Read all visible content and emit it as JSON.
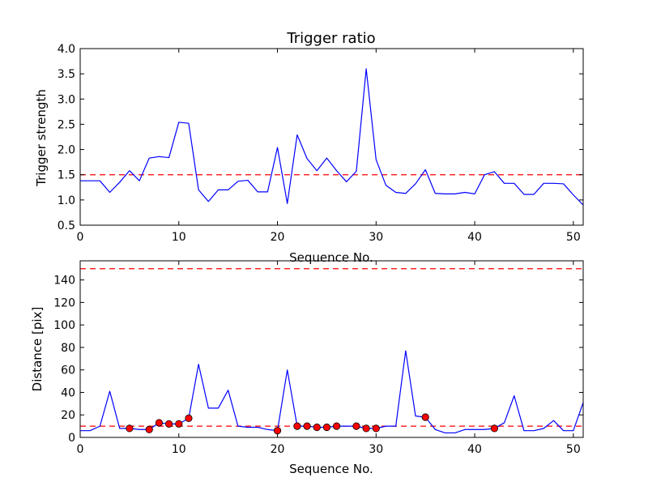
{
  "chart_data": [
    {
      "type": "line",
      "title": "Trigger ratio",
      "xlabel": "Sequence No.",
      "ylabel": "Trigger strength",
      "xlim": [
        0,
        51
      ],
      "ylim": [
        0.5,
        4.0
      ],
      "xticks": [
        0,
        10,
        20,
        30,
        40,
        50
      ],
      "xtick_labels": [
        "0",
        "10",
        "20",
        "30",
        "40",
        "50"
      ],
      "yticks": [
        0.5,
        1.0,
        1.5,
        2.0,
        2.5,
        3.0,
        3.5,
        4.0
      ],
      "ytick_labels": [
        "0.5",
        "1.0",
        "1.5",
        "2.0",
        "2.5",
        "3.0",
        "3.5",
        "4.0"
      ],
      "grid": false,
      "colors": {
        "line": "#0000ff",
        "threshold": "#ff0000"
      },
      "series": [
        {
          "x": [
            0,
            1,
            2,
            3,
            4,
            5,
            6,
            7,
            8,
            9,
            10,
            11,
            12,
            13,
            14,
            15,
            16,
            17,
            18,
            19,
            20,
            21,
            22,
            23,
            24,
            25,
            26,
            27,
            28,
            29,
            30,
            31,
            32,
            33,
            34,
            35,
            36,
            37,
            38,
            39,
            40,
            41,
            42,
            43,
            44,
            45,
            46,
            47,
            48,
            49,
            50,
            51
          ],
          "y": [
            1.38,
            1.38,
            1.38,
            1.15,
            1.35,
            1.58,
            1.38,
            1.83,
            1.86,
            1.84,
            2.54,
            2.52,
            1.2,
            0.97,
            1.2,
            1.2,
            1.37,
            1.39,
            1.16,
            1.16,
            2.04,
            0.93,
            2.29,
            1.82,
            1.58,
            1.83,
            1.58,
            1.36,
            1.57,
            3.6,
            1.8,
            1.29,
            1.15,
            1.13,
            1.32,
            1.6,
            1.13,
            1.12,
            1.12,
            1.15,
            1.12,
            1.5,
            1.56,
            1.33,
            1.33,
            1.11,
            1.11,
            1.33,
            1.33,
            1.32,
            1.1,
            0.9
          ]
        }
      ],
      "threshold": 1.5
    },
    {
      "type": "line",
      "xlabel": "Sequence No.",
      "ylabel": "Distance [pix]",
      "xlim": [
        0,
        51
      ],
      "ylim": [
        0,
        157
      ],
      "xticks": [
        0,
        10,
        20,
        30,
        40,
        50
      ],
      "xtick_labels": [
        "0",
        "10",
        "20",
        "30",
        "40",
        "50"
      ],
      "yticks": [
        0,
        20,
        40,
        60,
        80,
        100,
        120,
        140
      ],
      "ytick_labels": [
        "0",
        "20",
        "40",
        "60",
        "80",
        "100",
        "120",
        "140"
      ],
      "grid": false,
      "colors": {
        "line": "#0000ff",
        "threshold": "#ff0000",
        "marker_fill": "#ff0000",
        "marker_edge": "#000000"
      },
      "series": [
        {
          "x": [
            0,
            1,
            2,
            3,
            4,
            5,
            6,
            7,
            8,
            9,
            10,
            11,
            12,
            13,
            14,
            15,
            16,
            17,
            18,
            19,
            20,
            21,
            22,
            23,
            24,
            25,
            26,
            27,
            28,
            29,
            30,
            31,
            32,
            33,
            34,
            35,
            36,
            37,
            38,
            39,
            40,
            41,
            42,
            43,
            44,
            45,
            46,
            47,
            48,
            49,
            50,
            51
          ],
          "y": [
            6,
            6,
            10,
            41,
            8,
            8,
            7,
            7,
            13,
            12,
            12,
            17,
            65,
            26,
            26,
            42,
            10,
            9,
            9,
            7,
            6,
            60,
            10,
            10,
            9,
            9,
            10,
            10,
            10,
            8,
            8,
            10,
            10,
            77,
            19,
            18,
            7,
            4,
            4,
            7,
            7,
            7,
            8,
            13,
            37,
            6,
            6,
            8,
            15,
            6,
            6,
            31
          ]
        }
      ],
      "markers": {
        "x": [
          5,
          7,
          8,
          9,
          10,
          11,
          20,
          22,
          23,
          24,
          25,
          26,
          28,
          29,
          30,
          35,
          42
        ],
        "y": [
          8,
          7,
          13,
          12,
          12,
          17,
          6,
          10,
          10,
          9,
          9,
          10,
          10,
          8,
          8,
          18,
          8
        ]
      },
      "thresholds": [
        10,
        150
      ]
    }
  ]
}
